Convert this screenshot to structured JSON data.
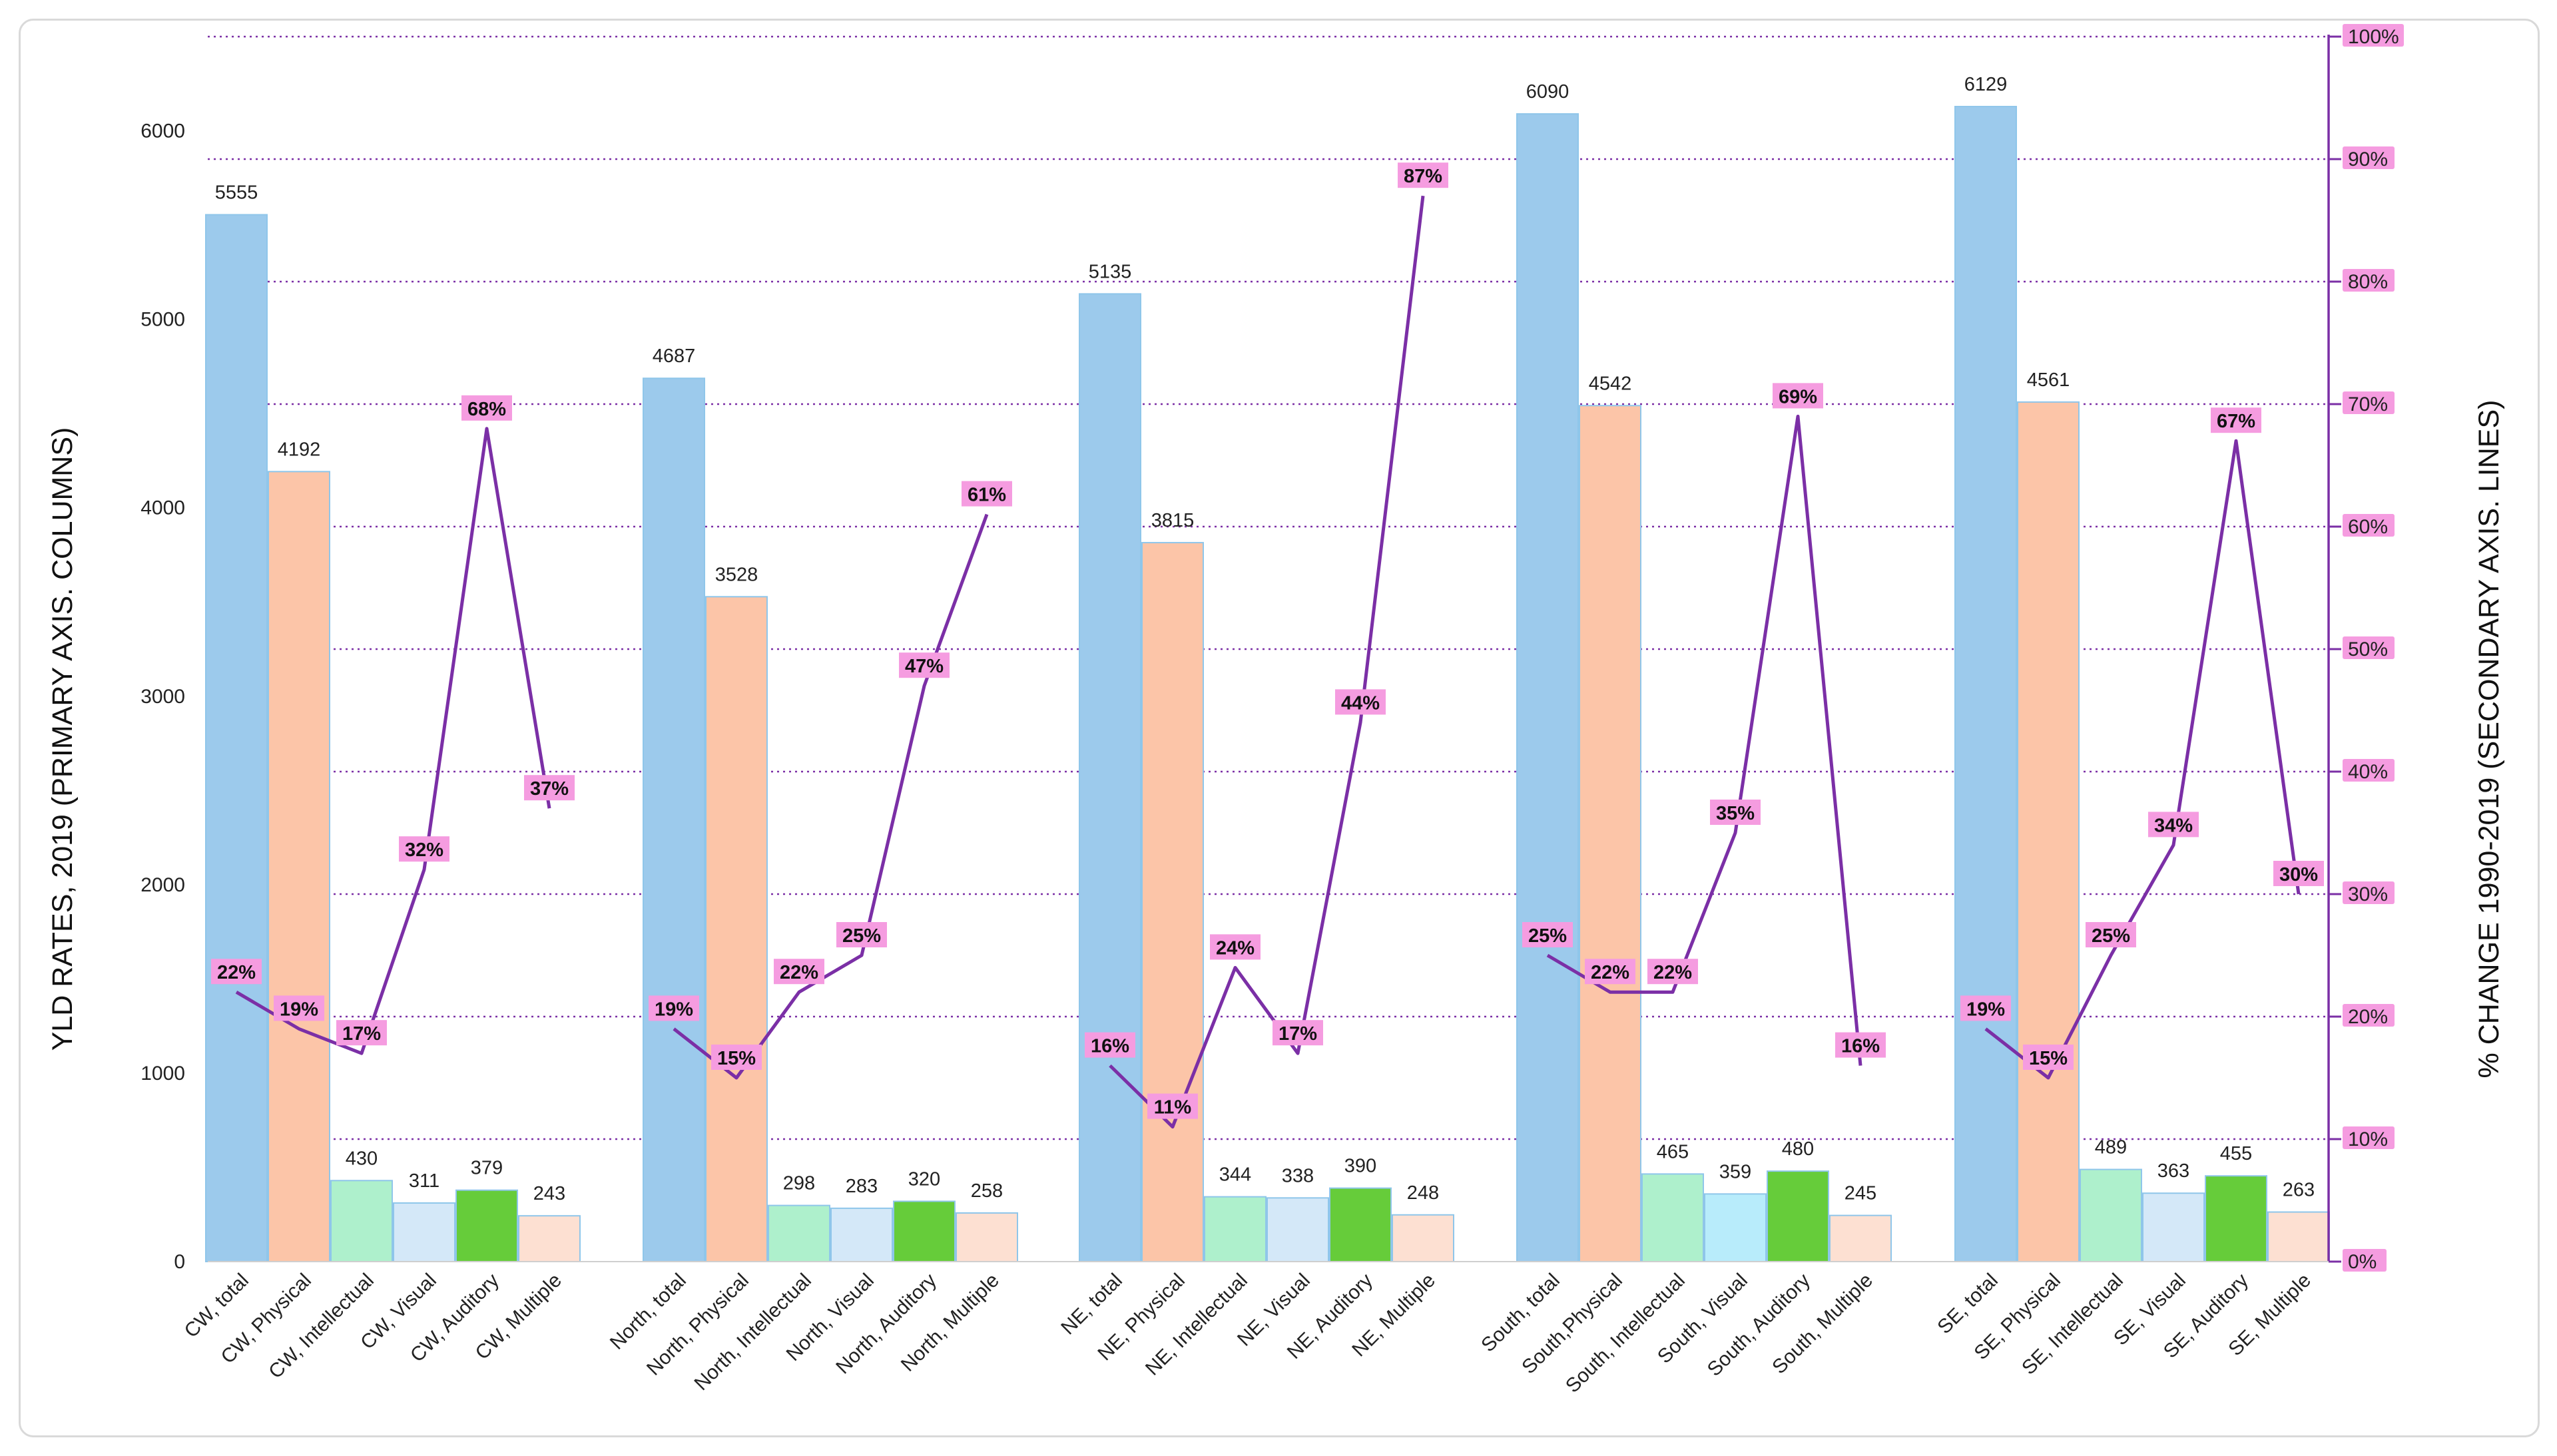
{
  "chart_data": {
    "type": "bar",
    "title": "",
    "ylabel": "YLD RATES, 2019 (PRIMARY AXIS. COLUMNS)",
    "y2label": "% CHANGE 1990-2019 (SECONDARY AXIS. LINES)",
    "ylim": [
      0,
      6500
    ],
    "y2lim": [
      0,
      100
    ],
    "yticks": [
      "0",
      "1000",
      "2000",
      "3000",
      "4000",
      "5000",
      "6000"
    ],
    "y2ticks": [
      "0%",
      "10%",
      "20%",
      "30%",
      "40%",
      "50%",
      "60%",
      "70%",
      "80%",
      "90%",
      "100%"
    ],
    "grid": true,
    "colors": {
      "total": "#9ccaec",
      "physical": "#fcc5a8",
      "intellectual": "#aef0cc",
      "visual": "#d4e8f8",
      "visual_south": "#b8ecfb",
      "auditory": "#66cc3a",
      "multiple": "#fde0d2",
      "line": "#7b2fa6",
      "label_bg": "#f59ce0",
      "grid": "#7b2fa6",
      "bar_edge": "#8fc6ea"
    },
    "groups": [
      {
        "region": "CW",
        "categories": [
          "CW, total",
          "CW, Physical",
          "CW, Intellectual",
          "CW, Visual",
          "CW, Auditory",
          "CW, Multiple"
        ],
        "values": [
          5555,
          4192,
          430,
          311,
          379,
          243
        ],
        "pct_change": [
          22,
          19,
          17,
          32,
          68,
          37
        ],
        "value_labels": [
          "5555",
          "4192",
          "430",
          "311",
          "379",
          "243"
        ],
        "pct_labels": [
          "22%",
          "19%",
          "17%",
          "32%",
          "68%",
          "37%"
        ]
      },
      {
        "region": "North",
        "categories": [
          "North, total",
          "North, Physical",
          "North, Intellectual",
          "North, Visual",
          "North, Auditory",
          "North, Multiple"
        ],
        "values": [
          4687,
          3528,
          298,
          283,
          320,
          258
        ],
        "pct_change": [
          19,
          15,
          22,
          25,
          47,
          61
        ],
        "value_labels": [
          "4687",
          "3528",
          "298",
          "283",
          "320",
          "258"
        ],
        "pct_labels": [
          "19%",
          "15%",
          "22%",
          "25%",
          "47%",
          "61%"
        ]
      },
      {
        "region": "NE",
        "categories": [
          "NE, total",
          "NE, Physical",
          "NE, Intellectual",
          "NE, Visual",
          "NE, Auditory",
          "NE, Multiple"
        ],
        "values": [
          5135,
          3815,
          344,
          338,
          390,
          248
        ],
        "pct_change": [
          16,
          11,
          24,
          17,
          44,
          87
        ],
        "value_labels": [
          "5135",
          "3815",
          "344",
          "338",
          "390",
          "248"
        ],
        "pct_labels": [
          "16%",
          "11%",
          "24%",
          "17%",
          "44%",
          "87%"
        ]
      },
      {
        "region": "South",
        "categories": [
          "South, total",
          "South,Physical",
          "South, Intellectual",
          "South, Visual",
          "South, Auditory",
          "South, Multiple"
        ],
        "values": [
          6090,
          4542,
          465,
          359,
          480,
          245
        ],
        "pct_change": [
          25,
          22,
          22,
          35,
          69,
          16
        ],
        "value_labels": [
          "6090",
          "4542",
          "465",
          "359",
          "480",
          "245"
        ],
        "pct_labels": [
          "25%",
          "22%",
          "22%",
          "35%",
          "69%",
          "16%"
        ]
      },
      {
        "region": "SE",
        "categories": [
          "SE, total",
          "SE, Physical",
          "SE, Intellectual",
          "SE, Visual",
          "SE, Auditory",
          "SE, Multiple"
        ],
        "values": [
          6129,
          4561,
          489,
          363,
          455,
          263
        ],
        "pct_change": [
          19,
          15,
          25,
          34,
          67,
          30
        ],
        "value_labels": [
          "6129",
          "4561",
          "489",
          "363",
          "455",
          "263"
        ],
        "pct_labels": [
          "19%",
          "15%",
          "25%",
          "34%",
          "67%",
          "30%"
        ]
      }
    ]
  }
}
